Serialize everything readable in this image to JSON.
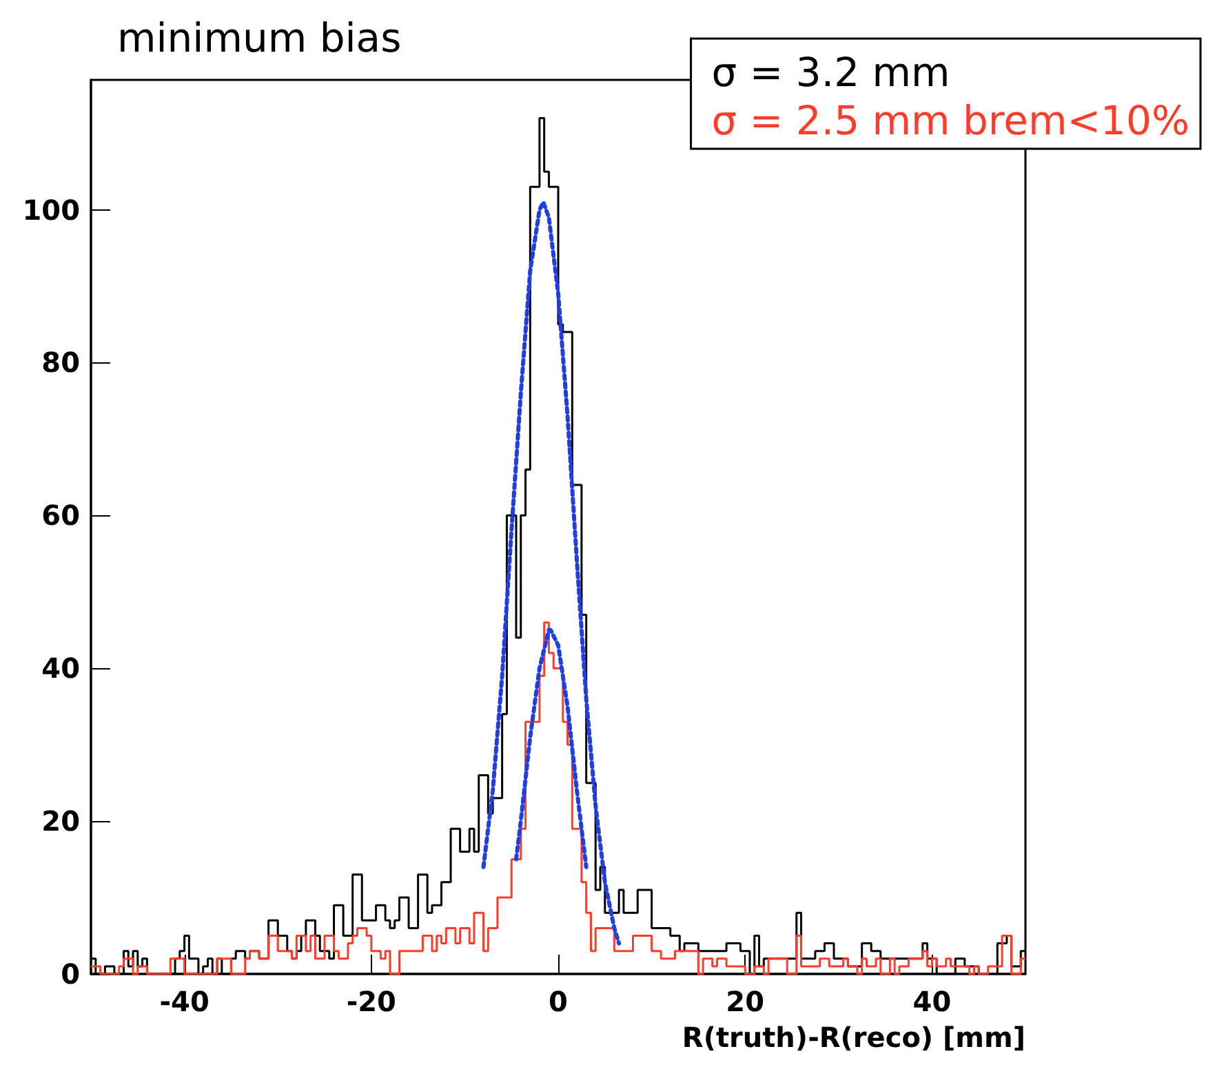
{
  "chart_data": {
    "type": "histogram",
    "title": "minimum bias",
    "xlabel": "R(truth)-R(reco) [mm]",
    "bins": [
      -50,
      -49.5,
      -49,
      -48.5,
      -48,
      -47.5,
      -47,
      -46.5,
      -46,
      -45.5,
      -45,
      -44.5,
      -44,
      -43.5,
      -43,
      -42.5,
      -42,
      -41.5,
      -41,
      -40.5,
      -40,
      -39.5,
      -39,
      -38.5,
      -38,
      -37.5,
      -37,
      -36.5,
      -36,
      -35.5,
      -35,
      -34.5,
      -34,
      -33.5,
      -33,
      -32.5,
      -32,
      -31.5,
      -31,
      -30.5,
      -30,
      -29.5,
      -29,
      -28.5,
      -28,
      -27.5,
      -27,
      -26.5,
      -26,
      -25.5,
      -25,
      -24.5,
      -24,
      -23.5,
      -23,
      -22.5,
      -22,
      -21.5,
      -21,
      -20.5,
      -20,
      -19.5,
      -19,
      -18.5,
      -18,
      -17.5,
      -17,
      -16.5,
      -16,
      -15.5,
      -15,
      -14.5,
      -14,
      -13.5,
      -13,
      -12.5,
      -12,
      -11.5,
      -11,
      -10.5,
      -10,
      -9.5,
      -9,
      -8.5,
      -8,
      -7.5,
      -7,
      -6.5,
      -6,
      -5.5,
      -5,
      -4.5,
      -4,
      -3.5,
      -3,
      -2.5,
      -2,
      -1.5,
      -1,
      -0.5,
      0,
      0.5,
      1,
      1.5,
      2,
      2.5,
      3,
      3.5,
      4,
      4.5,
      5,
      5.5,
      6,
      6.5,
      7,
      7.5,
      8,
      8.5,
      9,
      9.5,
      10,
      10.5,
      11,
      11.5,
      12,
      12.5,
      13,
      13.5,
      14,
      14.5,
      15,
      15.5,
      16,
      16.5,
      17,
      17.5,
      18,
      18.5,
      19,
      19.5,
      20,
      20.5,
      21,
      21.5,
      22,
      22.5,
      23,
      23.5,
      24,
      24.5,
      25,
      25.5,
      26,
      26.5,
      27,
      27.5,
      28,
      28.5,
      29,
      29.5,
      30,
      30.5,
      31,
      31.5,
      32,
      32.5,
      33,
      33.5,
      34,
      34.5,
      35,
      35.5,
      36,
      36.5,
      37,
      37.5,
      38,
      38.5,
      39,
      39.5,
      40,
      40.5,
      41,
      41.5,
      42,
      42.5,
      43,
      43.5,
      44,
      44.5,
      45,
      45.5,
      46,
      46.5,
      47,
      47.5,
      48,
      48.5,
      49,
      49.5,
      50
    ],
    "series": [
      {
        "name": "σ = 3.2 mm",
        "color": "#000000",
        "values": [
          2,
          0,
          0,
          1,
          1,
          0,
          0,
          3,
          1,
          3,
          1,
          2,
          0,
          0,
          0,
          0,
          0,
          0,
          2,
          3,
          5,
          2,
          2,
          0,
          1,
          2,
          0,
          2,
          0,
          0,
          2,
          3,
          3,
          2,
          3,
          3,
          2,
          2,
          7,
          7,
          5,
          5,
          3,
          2,
          3,
          5,
          7,
          7,
          5,
          3,
          3,
          2,
          9,
          9,
          5,
          5,
          13,
          13,
          7,
          7,
          7,
          9,
          9,
          7,
          6,
          7,
          10,
          10,
          6,
          6,
          13,
          13,
          8,
          9,
          9,
          12,
          12,
          19,
          19,
          16,
          16,
          19,
          16,
          26,
          26,
          21,
          23,
          23,
          34,
          60,
          60,
          44,
          60,
          66,
          103,
          103,
          112,
          105,
          103,
          103,
          85,
          84,
          84,
          64,
          64,
          47,
          25,
          25,
          11,
          14,
          8,
          8,
          8,
          11,
          8,
          8,
          8,
          11,
          11,
          11,
          6,
          6,
          6,
          6,
          5,
          5,
          3,
          4,
          4,
          4,
          3,
          3,
          3,
          3,
          3,
          3,
          4,
          4,
          4,
          3,
          3,
          0,
          5,
          1,
          2,
          2,
          2,
          2,
          2,
          2,
          2,
          8,
          2,
          2,
          2,
          3,
          3,
          4,
          4,
          2,
          2,
          2,
          1,
          1,
          1,
          4,
          4,
          3,
          3,
          2,
          2,
          2,
          2,
          2,
          2,
          2,
          2,
          2,
          4,
          2,
          2,
          0,
          0,
          0,
          0,
          2,
          2,
          1,
          1,
          1,
          0,
          0,
          0,
          0,
          4,
          4,
          5,
          1,
          1,
          3
        ]
      },
      {
        "name": "σ = 2.5 mm brem<10%",
        "color": "#ff3b2a",
        "values": [
          1,
          1,
          0,
          0,
          0,
          0,
          1,
          2,
          2,
          0,
          1,
          1,
          0,
          0,
          0,
          0,
          0,
          2,
          2,
          2,
          0,
          0,
          0,
          0,
          0,
          0,
          0,
          2,
          2,
          2,
          0,
          0,
          0,
          2,
          3,
          3,
          2,
          2,
          5,
          5,
          3,
          3,
          3,
          2,
          5,
          5,
          3,
          5,
          2,
          2,
          5,
          5,
          3,
          2,
          2,
          4,
          5,
          6,
          6,
          5,
          3,
          3,
          2,
          3,
          0,
          0,
          3,
          3,
          3,
          3,
          3,
          5,
          5,
          3,
          5,
          4,
          6,
          6,
          4,
          6,
          6,
          4,
          8,
          8,
          3,
          6,
          6,
          10,
          10,
          10,
          15,
          15,
          19,
          33,
          33,
          33,
          39,
          46,
          42,
          40,
          40,
          33,
          30,
          19,
          19,
          12,
          8,
          3,
          6,
          6,
          6,
          6,
          3,
          3,
          3,
          3,
          5,
          5,
          5,
          5,
          3,
          3,
          2,
          2,
          2,
          3,
          3,
          3,
          3,
          3,
          0,
          2,
          2,
          1,
          2,
          2,
          1,
          1,
          1,
          1,
          0,
          0,
          1,
          1,
          0,
          2,
          2,
          2,
          2,
          0,
          0,
          5,
          1,
          1,
          1,
          1,
          2,
          2,
          1,
          1,
          1,
          2,
          1,
          1,
          0,
          2,
          1,
          1,
          2,
          0,
          0,
          2,
          0,
          1,
          1,
          2,
          2,
          2,
          3,
          1,
          2,
          1,
          1,
          2,
          1,
          1,
          1,
          1,
          0,
          1,
          0,
          0,
          1,
          1,
          1,
          5,
          5,
          0,
          0,
          2
        ]
      },
      {
        "type": "line",
        "color": "#1f3fe0",
        "line_style": "dotted",
        "x": [
          -8,
          -7,
          -6,
          -5,
          -4,
          -3,
          -2,
          -1.6,
          -1,
          0,
          1,
          2,
          3,
          4,
          5,
          6,
          6.5
        ],
        "values": [
          14,
          24,
          39,
          58,
          76,
          92,
          100,
          101,
          99,
          89,
          73,
          54,
          36,
          22,
          12,
          6,
          4
        ]
      },
      {
        "type": "line",
        "color": "#1f3fe0",
        "line_style": "dotted",
        "x": [
          -4.5,
          -4,
          -3,
          -2,
          -1,
          -0.8,
          0,
          1,
          2,
          3
        ],
        "values": [
          15,
          20,
          31,
          40,
          45,
          45,
          43,
          35,
          24,
          14
        ]
      }
    ],
    "xlim": [
      -50,
      50
    ],
    "xticks": [
      -40,
      -20,
      0,
      20,
      40
    ],
    "ylim": [
      0,
      117
    ],
    "yticks": [
      0,
      20,
      40,
      60,
      80,
      100
    ],
    "grid": false,
    "legend": "top right"
  }
}
